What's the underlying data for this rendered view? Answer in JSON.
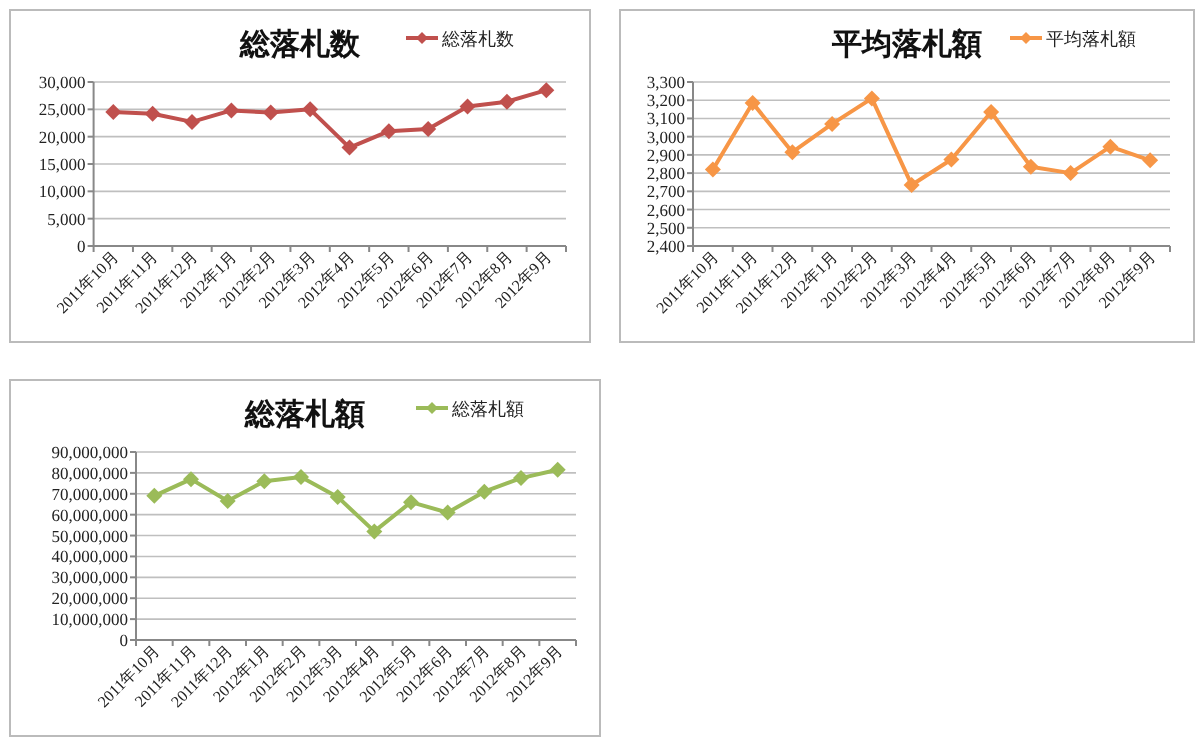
{
  "chart_data": [
    {
      "type": "line",
      "title": "総落札数",
      "categories": [
        "2011年10月",
        "2011年11月",
        "2011年12月",
        "2012年1月",
        "2012年2月",
        "2012年3月",
        "2012年4月",
        "2012年5月",
        "2012年6月",
        "2012年7月",
        "2012年8月",
        "2012年9月"
      ],
      "series": [
        {
          "name": "総落札数",
          "color": "#c0504d",
          "values": [
            24500,
            24200,
            22700,
            24800,
            24400,
            25000,
            18000,
            21000,
            21400,
            25500,
            26400,
            28500
          ]
        }
      ],
      "ylim": [
        0,
        30000
      ],
      "yticks": [
        {
          "value": 0,
          "label": "0"
        },
        {
          "value": 5000,
          "label": "5,000"
        },
        {
          "value": 10000,
          "label": "10,000"
        },
        {
          "value": 15000,
          "label": "15,000"
        },
        {
          "value": 20000,
          "label": "20,000"
        },
        {
          "value": 25000,
          "label": "25,000"
        },
        {
          "value": 30000,
          "label": "30,000"
        }
      ],
      "grid": "y",
      "legend": "top right",
      "marker": "diamond",
      "line_style": "solid"
    },
    {
      "type": "line",
      "title": "平均落札額",
      "categories": [
        "2011年10月",
        "2011年11月",
        "2011年12月",
        "2012年1月",
        "2012年2月",
        "2012年3月",
        "2012年4月",
        "2012年5月",
        "2012年6月",
        "2012年7月",
        "2012年8月",
        "2012年9月"
      ],
      "series": [
        {
          "name": "平均落札額",
          "color": "#f79646",
          "values": [
            2820,
            3185,
            2915,
            3070,
            3210,
            2735,
            2875,
            3135,
            2835,
            2800,
            2945,
            2870
          ]
        }
      ],
      "ylim": [
        2400,
        3300
      ],
      "yticks": [
        {
          "value": 2400,
          "label": "2,400"
        },
        {
          "value": 2500,
          "label": "2,500"
        },
        {
          "value": 2600,
          "label": "2,600"
        },
        {
          "value": 2700,
          "label": "2,700"
        },
        {
          "value": 2800,
          "label": "2,800"
        },
        {
          "value": 2900,
          "label": "2,900"
        },
        {
          "value": 3000,
          "label": "3,000"
        },
        {
          "value": 3100,
          "label": "3,100"
        },
        {
          "value": 3200,
          "label": "3,200"
        },
        {
          "value": 3300,
          "label": "3,300"
        }
      ],
      "grid": "y",
      "legend": "top right",
      "marker": "diamond",
      "line_style": "solid"
    },
    {
      "type": "line",
      "title": "総落札額",
      "categories": [
        "2011年10月",
        "2011年11月",
        "2011年12月",
        "2012年1月",
        "2012年2月",
        "2012年3月",
        "2012年4月",
        "2012年5月",
        "2012年6月",
        "2012年7月",
        "2012年8月",
        "2012年9月"
      ],
      "series": [
        {
          "name": "総落札額",
          "color": "#9bbb59",
          "values": [
            69000000,
            77000000,
            66500000,
            76000000,
            78000000,
            68500000,
            52000000,
            66000000,
            61000000,
            71000000,
            77500000,
            81500000
          ]
        }
      ],
      "ylim": [
        0,
        90000000
      ],
      "yticks": [
        {
          "value": 0,
          "label": "0"
        },
        {
          "value": 10000000,
          "label": "10,000,000"
        },
        {
          "value": 20000000,
          "label": "20,000,000"
        },
        {
          "value": 30000000,
          "label": "30,000,000"
        },
        {
          "value": 40000000,
          "label": "40,000,000"
        },
        {
          "value": 50000000,
          "label": "50,000,000"
        },
        {
          "value": 60000000,
          "label": "60,000,000"
        },
        {
          "value": 70000000,
          "label": "70,000,000"
        },
        {
          "value": 80000000,
          "label": "80,000,000"
        },
        {
          "value": 90000000,
          "label": "90,000,000"
        }
      ],
      "grid": "y",
      "legend": "top right",
      "marker": "diamond",
      "line_style": "solid"
    }
  ]
}
